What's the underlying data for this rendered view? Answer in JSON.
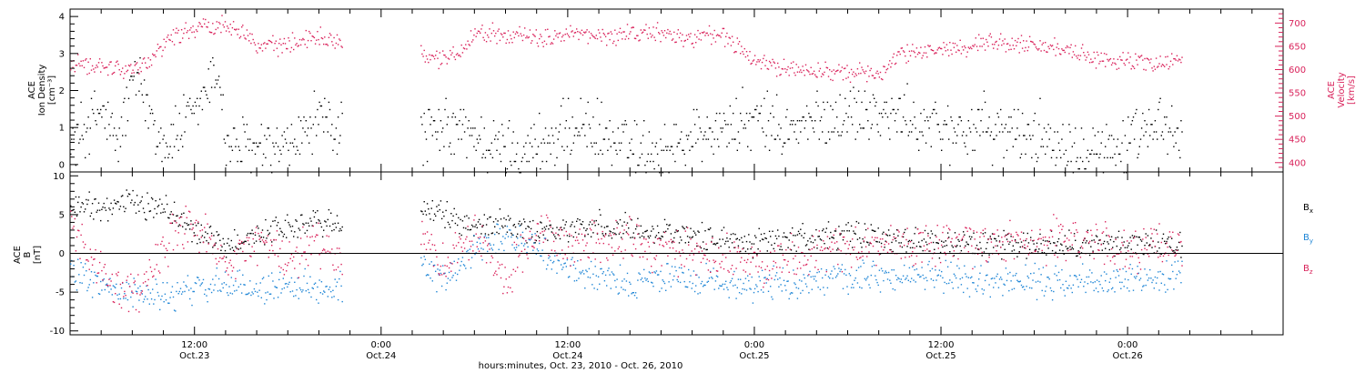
{
  "chart_data": [
    {
      "panel": "plasma",
      "type": "scatter",
      "x_start": "2010-10-23T04:00",
      "x_end": "2010-10-26T10:00",
      "data_gap": [
        "2010-10-23T21:30",
        "2010-10-24T02:30"
      ],
      "colors": {
        "density": "#000000",
        "velocity": "#d9215a"
      },
      "left_axis": {
        "label_lines": [
          "ACE",
          "Ion Density",
          "[cm⁻³]"
        ],
        "range": [
          -0.2,
          4.2
        ],
        "ticks": [
          0,
          1,
          2,
          3,
          4
        ],
        "tick_labels": [
          "0",
          "1",
          "2",
          "3",
          "4"
        ]
      },
      "right_axis": {
        "label_lines": [
          "ACE",
          "Velocity",
          "[km/s]"
        ],
        "range": [
          380,
          730
        ],
        "ticks": [
          400,
          450,
          500,
          550,
          600,
          650,
          700
        ],
        "tick_labels": [
          "400",
          "450",
          "500",
          "550",
          "600",
          "650",
          "700"
        ]
      },
      "series": [
        {
          "name": "",
          "axis": "left",
          "color": "#000000",
          "key_points": [
            [
              "2010-10-23T04:00",
              0.6
            ],
            [
              "2010-10-23T06:00",
              1.5
            ],
            [
              "2010-10-23T07:00",
              0.5
            ],
            [
              "2010-10-23T08:00",
              2.4
            ],
            [
              "2010-10-23T09:00",
              1.6
            ],
            [
              "2010-10-23T10:00",
              0.5
            ],
            [
              "2010-10-23T12:00",
              1.4
            ],
            [
              "2010-10-23T13:30",
              2.6
            ],
            [
              "2010-10-23T14:00",
              0.6
            ],
            [
              "2010-10-23T16:00",
              0.4
            ],
            [
              "2010-10-23T18:00",
              0.4
            ],
            [
              "2010-10-23T20:00",
              1.2
            ],
            [
              "2010-10-23T21:30",
              1.0
            ],
            [
              "2010-10-24T02:30",
              0.8
            ],
            [
              "2010-10-24T05:00",
              1.0
            ],
            [
              "2010-10-24T07:00",
              0.5
            ],
            [
              "2010-10-24T09:00",
              0.4
            ],
            [
              "2010-10-24T11:00",
              0.7
            ],
            [
              "2010-10-24T13:00",
              1.1
            ],
            [
              "2010-10-24T15:00",
              0.6
            ],
            [
              "2010-10-24T17:00",
              0.4
            ],
            [
              "2010-10-24T19:00",
              0.5
            ],
            [
              "2010-10-24T20:00",
              0.8
            ],
            [
              "2010-10-24T22:00",
              1.0
            ],
            [
              "2010-10-25T00:00",
              1.2
            ],
            [
              "2010-10-25T02:00",
              0.9
            ],
            [
              "2010-10-25T05:00",
              1.3
            ],
            [
              "2010-10-25T07:00",
              1.5
            ],
            [
              "2010-10-25T09:00",
              1.3
            ],
            [
              "2010-10-25T12:00",
              1.0
            ],
            [
              "2010-10-25T15:00",
              1.0
            ],
            [
              "2010-10-25T18:00",
              0.8
            ],
            [
              "2010-10-25T21:00",
              0.6
            ],
            [
              "2010-10-26T00:00",
              0.5
            ],
            [
              "2010-10-26T02:00",
              1.0
            ],
            [
              "2010-10-26T03:30",
              0.8
            ]
          ]
        },
        {
          "name": "",
          "axis": "right",
          "color": "#d9215a",
          "key_points": [
            [
              "2010-10-23T04:00",
              610
            ],
            [
              "2010-10-23T06:00",
              612
            ],
            [
              "2010-10-23T07:30",
              600
            ],
            [
              "2010-10-23T09:00",
              615
            ],
            [
              "2010-10-23T10:00",
              660
            ],
            [
              "2010-10-23T11:00",
              680
            ],
            [
              "2010-10-23T12:00",
              690
            ],
            [
              "2010-10-23T14:00",
              700
            ],
            [
              "2010-10-23T15:00",
              690
            ],
            [
              "2010-10-23T16:00",
              650
            ],
            [
              "2010-10-23T18:00",
              655
            ],
            [
              "2010-10-23T20:00",
              675
            ],
            [
              "2010-10-23T21:30",
              660
            ],
            [
              "2010-10-24T02:30",
              635
            ],
            [
              "2010-10-24T04:00",
              625
            ],
            [
              "2010-10-24T05:00",
              640
            ],
            [
              "2010-10-24T06:00",
              680
            ],
            [
              "2010-10-24T08:00",
              680
            ],
            [
              "2010-10-24T10:00",
              665
            ],
            [
              "2010-10-24T12:00",
              680
            ],
            [
              "2010-10-24T14:00",
              670
            ],
            [
              "2010-10-24T16:00",
              680
            ],
            [
              "2010-10-24T18:00",
              680
            ],
            [
              "2010-10-24T20:00",
              665
            ],
            [
              "2010-10-24T21:00",
              680
            ],
            [
              "2010-10-24T22:30",
              665
            ],
            [
              "2010-10-25T00:00",
              615
            ],
            [
              "2010-10-25T03:00",
              600
            ],
            [
              "2010-10-25T06:00",
              595
            ],
            [
              "2010-10-25T08:00",
              590
            ],
            [
              "2010-10-25T09:00",
              630
            ],
            [
              "2010-10-25T12:00",
              645
            ],
            [
              "2010-10-25T15:00",
              660
            ],
            [
              "2010-10-25T18:00",
              655
            ],
            [
              "2010-10-25T20:00",
              640
            ],
            [
              "2010-10-25T22:00",
              625
            ],
            [
              "2010-10-26T00:00",
              620
            ],
            [
              "2010-10-26T02:00",
              615
            ],
            [
              "2010-10-26T03:30",
              620
            ]
          ]
        }
      ]
    },
    {
      "panel": "magnetic-field",
      "type": "scatter",
      "x_start": "2010-10-23T04:00",
      "x_end": "2010-10-26T10:00",
      "data_gap": [
        "2010-10-23T21:30",
        "2010-10-24T02:30"
      ],
      "y_axis": {
        "label_lines": [
          "ACE",
          "B",
          "[nT]"
        ],
        "range": [
          -10.5,
          10.5
        ],
        "ticks": [
          -10,
          -5,
          0,
          5,
          10
        ],
        "tick_labels": [
          "-10",
          "-5",
          "0",
          "5",
          "10"
        ],
        "zero_line": true
      },
      "series": [
        {
          "name": "B",
          "subscript": "x",
          "color": "#000000",
          "key_points": [
            [
              "2010-10-23T04:00",
              6.2
            ],
            [
              "2010-10-23T06:00",
              6.0
            ],
            [
              "2010-10-23T08:00",
              6.5
            ],
            [
              "2010-10-23T10:00",
              6.0
            ],
            [
              "2010-10-23T12:00",
              3.0
            ],
            [
              "2010-10-23T14:00",
              1.0
            ],
            [
              "2010-10-23T16:00",
              2.5
            ],
            [
              "2010-10-23T18:00",
              3.5
            ],
            [
              "2010-10-23T20:00",
              4.0
            ],
            [
              "2010-10-23T21:30",
              4.0
            ],
            [
              "2010-10-24T02:30",
              5.5
            ],
            [
              "2010-10-24T04:00",
              5.0
            ],
            [
              "2010-10-24T06:00",
              3.5
            ],
            [
              "2010-10-24T08:00",
              4.0
            ],
            [
              "2010-10-24T10:00",
              3.0
            ],
            [
              "2010-10-24T14:00",
              3.5
            ],
            [
              "2010-10-24T18:00",
              3.0
            ],
            [
              "2010-10-24T21:00",
              2.0
            ],
            [
              "2010-10-25T00:00",
              1.5
            ],
            [
              "2010-10-25T04:00",
              2.5
            ],
            [
              "2010-10-25T08:00",
              2.0
            ],
            [
              "2010-10-25T12:00",
              1.5
            ],
            [
              "2010-10-25T16:00",
              1.0
            ],
            [
              "2010-10-25T20:00",
              1.0
            ],
            [
              "2010-10-26T00:00",
              1.5
            ],
            [
              "2010-10-26T03:30",
              1.0
            ]
          ]
        },
        {
          "name": "B",
          "subscript": "y",
          "color": "#1f86d6",
          "key_points": [
            [
              "2010-10-23T04:00",
              -2.0
            ],
            [
              "2010-10-23T06:00",
              -4.0
            ],
            [
              "2010-10-23T08:00",
              -5.0
            ],
            [
              "2010-10-23T10:00",
              -5.5
            ],
            [
              "2010-10-23T12:00",
              -4.5
            ],
            [
              "2010-10-23T14:00",
              -4.0
            ],
            [
              "2010-10-23T16:00",
              -4.5
            ],
            [
              "2010-10-23T18:00",
              -4.0
            ],
            [
              "2010-10-23T20:00",
              -4.5
            ],
            [
              "2010-10-23T21:30",
              -4.0
            ],
            [
              "2010-10-24T02:30",
              -1.5
            ],
            [
              "2010-10-24T04:00",
              -3.5
            ],
            [
              "2010-10-24T06:00",
              1.0
            ],
            [
              "2010-10-24T08:00",
              2.5
            ],
            [
              "2010-10-24T10:00",
              1.0
            ],
            [
              "2010-10-24T12:00",
              -2.0
            ],
            [
              "2010-10-24T14:00",
              -3.0
            ],
            [
              "2010-10-24T16:00",
              -4.0
            ],
            [
              "2010-10-24T18:00",
              -3.0
            ],
            [
              "2010-10-24T21:00",
              -3.5
            ],
            [
              "2010-10-25T00:00",
              -4.0
            ],
            [
              "2010-10-25T04:00",
              -3.5
            ],
            [
              "2010-10-25T08:00",
              -3.0
            ],
            [
              "2010-10-25T12:00",
              -3.0
            ],
            [
              "2010-10-25T16:00",
              -3.5
            ],
            [
              "2010-10-25T20:00",
              -3.5
            ],
            [
              "2010-10-26T00:00",
              -3.5
            ],
            [
              "2010-10-26T03:30",
              -3.0
            ]
          ]
        },
        {
          "name": "B",
          "subscript": "z",
          "color": "#d9215a",
          "key_points": [
            [
              "2010-10-23T04:00",
              4.5
            ],
            [
              "2010-10-23T05:00",
              0.5
            ],
            [
              "2010-10-23T06:00",
              -2.5
            ],
            [
              "2010-10-23T08:00",
              -5.5
            ],
            [
              "2010-10-23T10:00",
              1.0
            ],
            [
              "2010-10-23T12:00",
              3.5
            ],
            [
              "2010-10-23T14:00",
              -2.0
            ],
            [
              "2010-10-23T16:00",
              2.0
            ],
            [
              "2010-10-23T18:00",
              -1.0
            ],
            [
              "2010-10-23T20:00",
              1.5
            ],
            [
              "2010-10-23T21:30",
              -1.0
            ],
            [
              "2010-10-24T02:30",
              2.0
            ],
            [
              "2010-10-24T04:00",
              -1.0
            ],
            [
              "2010-10-24T06:00",
              3.0
            ],
            [
              "2010-10-24T08:00",
              -3.0
            ],
            [
              "2010-10-24T10:00",
              3.0
            ],
            [
              "2010-10-24T12:00",
              1.0
            ],
            [
              "2010-10-24T14:00",
              1.5
            ],
            [
              "2010-10-24T16:00",
              2.0
            ],
            [
              "2010-10-24T18:00",
              0.5
            ],
            [
              "2010-10-24T21:00",
              -0.5
            ],
            [
              "2010-10-25T00:00",
              -1.0
            ],
            [
              "2010-10-25T04:00",
              0.5
            ],
            [
              "2010-10-25T08:00",
              1.0
            ],
            [
              "2010-10-25T12:00",
              1.0
            ],
            [
              "2010-10-25T16:00",
              1.5
            ],
            [
              "2010-10-25T20:00",
              2.0
            ],
            [
              "2010-10-26T00:00",
              0.5
            ],
            [
              "2010-10-26T03:30",
              1.0
            ]
          ]
        }
      ]
    }
  ],
  "x_axis": {
    "ticks": [
      "2010-10-23T12:00",
      "2010-10-24T00:00",
      "2010-10-24T12:00",
      "2010-10-25T00:00",
      "2010-10-25T12:00",
      "2010-10-26T00:00"
    ],
    "tick_labels_time": [
      "12:00",
      "0:00",
      "12:00",
      "0:00",
      "12:00",
      "0:00"
    ],
    "tick_labels_date": [
      "Oct.23",
      "Oct.24",
      "Oct.24",
      "Oct.25",
      "Oct.25",
      "Oct.26"
    ],
    "xlabel": "hours:minutes, Oct. 23, 2010 - Oct. 26, 2010"
  }
}
